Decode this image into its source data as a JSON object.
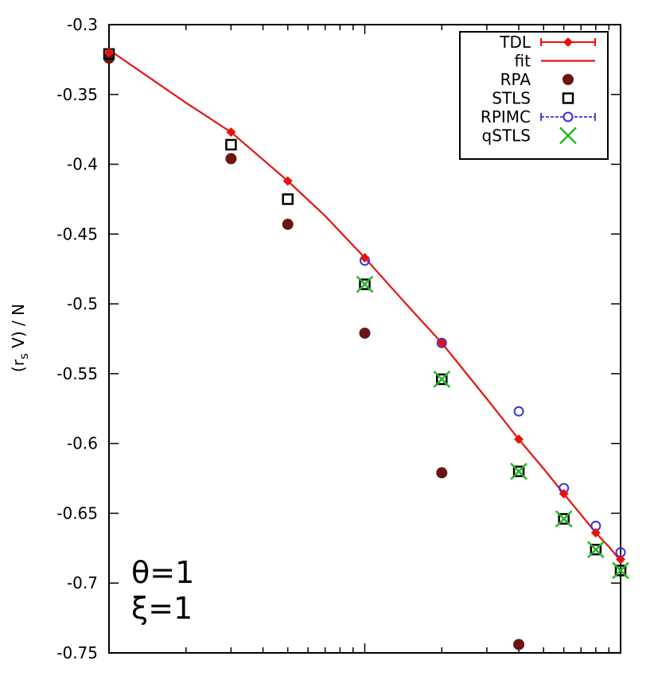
{
  "chart_data": {
    "type": "scatter",
    "title": "",
    "xlabel": "",
    "ylabel": "(r_s V) / N",
    "ylabel_parts": {
      "pre": "(r",
      "sub": "s",
      "post": " V) / N"
    },
    "x_scale": "log",
    "xlim": [
      0.1,
      10
    ],
    "ylim": [
      -0.75,
      -0.3
    ],
    "yticks": [
      -0.3,
      -0.35,
      -0.4,
      -0.45,
      -0.5,
      -0.55,
      -0.6,
      -0.65,
      -0.7,
      -0.75
    ],
    "ytick_labels": [
      "-0.3",
      "-0.35",
      "-0.4",
      "-0.45",
      "-0.5",
      "-0.55",
      "-0.6",
      "-0.65",
      "-0.7",
      "-0.75"
    ],
    "grid": false,
    "legend_position": "top-right",
    "annotations": [
      "θ=1",
      "ξ=1"
    ],
    "series": [
      {
        "name": "TDL",
        "style": "diamond-errorbar",
        "color": "#e8120c",
        "x": [
          0.1,
          0.3,
          0.5,
          1.0,
          2.0,
          4.0,
          6.0,
          8.0,
          10.0
        ],
        "y": [
          -0.32,
          -0.377,
          -0.412,
          -0.467,
          -0.528,
          -0.597,
          -0.636,
          -0.664,
          -0.683
        ]
      },
      {
        "name": "fit",
        "style": "line",
        "color": "#e8120c",
        "x": [
          0.1,
          0.2,
          0.3,
          0.5,
          0.7,
          1.0,
          1.5,
          2.0,
          3.0,
          4.0,
          5.0,
          6.0,
          7.0,
          8.0,
          9.0,
          10.0
        ],
        "y": [
          -0.318,
          -0.356,
          -0.377,
          -0.412,
          -0.437,
          -0.467,
          -0.503,
          -0.528,
          -0.568,
          -0.597,
          -0.618,
          -0.636,
          -0.651,
          -0.664,
          -0.674,
          -0.684
        ]
      },
      {
        "name": "RPA",
        "style": "filled-circle",
        "color": "#6b1414",
        "x": [
          0.1,
          0.3,
          0.5,
          1.0,
          2.0,
          4.0
        ],
        "y": [
          -0.324,
          -0.396,
          -0.443,
          -0.521,
          -0.621,
          -0.744
        ]
      },
      {
        "name": "STLS",
        "style": "open-square",
        "color": "#000000",
        "x": [
          0.1,
          0.3,
          0.5,
          1.0,
          2.0,
          4.0,
          6.0,
          8.0,
          10.0
        ],
        "y": [
          -0.321,
          -0.386,
          -0.425,
          -0.486,
          -0.554,
          -0.62,
          -0.654,
          -0.676,
          -0.691
        ]
      },
      {
        "name": "RPIMC",
        "style": "open-circle-errorbar",
        "color": "#3333dd",
        "x": [
          1.0,
          2.0,
          4.0,
          6.0,
          8.0,
          10.0
        ],
        "y": [
          -0.469,
          -0.528,
          -0.577,
          -0.632,
          -0.659,
          -0.678
        ]
      },
      {
        "name": "qSTLS",
        "style": "cross",
        "color": "#22b822",
        "x": [
          1.0,
          2.0,
          4.0,
          6.0,
          8.0,
          10.0
        ],
        "y": [
          -0.486,
          -0.554,
          -0.62,
          -0.654,
          -0.676,
          -0.691
        ]
      }
    ]
  }
}
